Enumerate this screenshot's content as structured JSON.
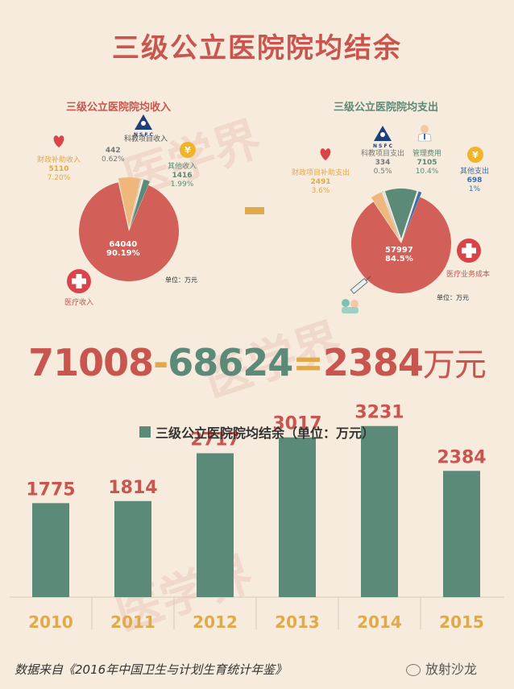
{
  "title": "三级公立医院院均结余",
  "watermark": "医学界",
  "income": {
    "title": "三级公立医院院均收入",
    "unit_label": "单位：万元",
    "nsfc_logo_text": "N S F C",
    "items": [
      {
        "label": "医疗收入",
        "value": "64040",
        "pct": "90.19%",
        "amount": 64040,
        "color": "#d25f58",
        "icon": "red-cross-icon"
      },
      {
        "label": "财政补助收入",
        "value": "5110",
        "pct": "7.20%",
        "amount": 5110,
        "color": "#efb77b",
        "icon": "heart-icon"
      },
      {
        "label": "科教项目收入",
        "value": "442",
        "pct": "0.62%",
        "amount": 442,
        "color": "#ffffff",
        "icon": "nsfc-logo-icon"
      },
      {
        "label": "其他收入",
        "value": "1416",
        "pct": "1.99%",
        "amount": 1416,
        "color": "#5b8a78",
        "icon": "coin-icon"
      }
    ]
  },
  "expense": {
    "title": "三级公立医院院均支出",
    "unit_label": "单位：万元",
    "nsfc_logo_text": "N S F C",
    "items": [
      {
        "label": "医疗业务成本",
        "value": "57997",
        "pct": "84.5%",
        "amount": 57997,
        "color": "#d25f58",
        "icon": "red-cross-icon"
      },
      {
        "label": "财政项目补助支出",
        "value": "2491",
        "pct": "3.6%",
        "amount": 2491,
        "color": "#efb77b",
        "icon": "heart-icon"
      },
      {
        "label": "科教项目支出",
        "value": "334",
        "pct": "0.5%",
        "amount": 334,
        "color": "#ffffff",
        "icon": "nsfc-logo-icon"
      },
      {
        "label": "管理费用",
        "value": "7105",
        "pct": "10.4%",
        "amount": 7105,
        "color": "#5b8a78",
        "icon": "doctor-icon"
      },
      {
        "label": "其他支出",
        "value": "698",
        "pct": "1%",
        "amount": 698,
        "color": "#3b6fb0",
        "icon": "coin-icon"
      }
    ]
  },
  "equation": {
    "a": "71008",
    "minus": "-",
    "b": "68624",
    "eq": "=",
    "result": "2384",
    "unit": "万元"
  },
  "chart_data": {
    "type": "bar",
    "title": "三级公立医院院均结余（单位：万元）",
    "categories": [
      "2010",
      "2011",
      "2012",
      "2013",
      "2014",
      "2015"
    ],
    "values": [
      1775,
      1814,
      2717,
      3017,
      3231,
      2384
    ],
    "bar_color": "#5b8a78",
    "value_label_color": "#c9554f",
    "category_label_color": "#e0a94a",
    "ylim": [
      0,
      3500
    ],
    "grid": false
  },
  "source": "数据来自《2016年中国卫生与计划生育统计年鉴》",
  "brand": "放射沙龙",
  "colors": {
    "red": "#c9554f",
    "green": "#5b8a78",
    "orange": "#efb77b",
    "background": "#f6ebdc"
  }
}
